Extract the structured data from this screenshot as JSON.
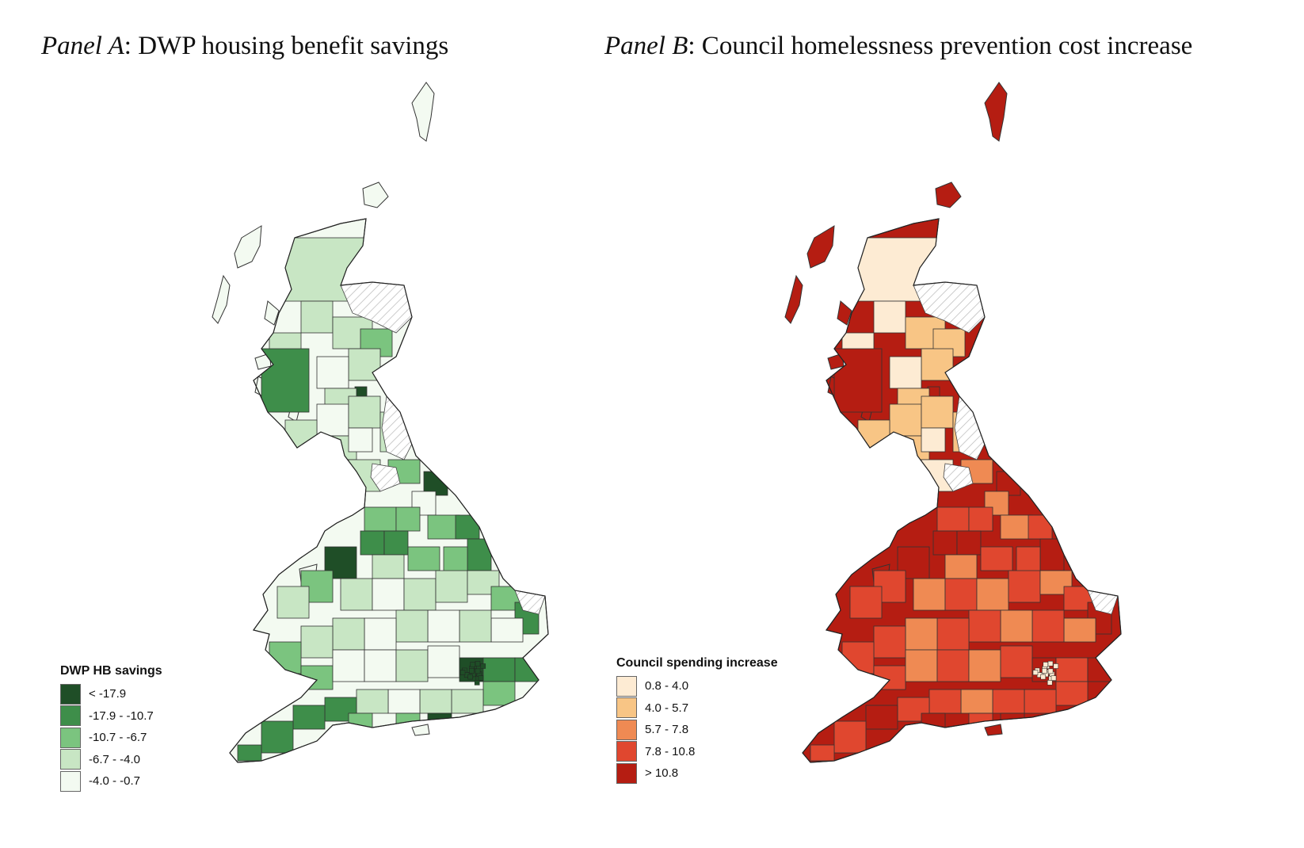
{
  "panel_a": {
    "title_italic": "Panel A",
    "title_rest": ": DWP housing benefit savings",
    "legend": {
      "title": "DWP HB savings",
      "items": [
        {
          "label": "< -17.9",
          "color": "#1f4e27"
        },
        {
          "label": "-17.9 - -10.7",
          "color": "#3e8e4a"
        },
        {
          "label": "-10.7 - -6.7",
          "color": "#7bc47f"
        },
        {
          "label": "-6.7 - -4.0",
          "color": "#c8e6c4"
        },
        {
          "label": "-4.0 - -0.7",
          "color": "#f3faf1"
        }
      ]
    }
  },
  "panel_b": {
    "title_italic": "Panel B",
    "title_rest": ": Council homelessness prevention cost increase",
    "legend": {
      "title": "Council spending increase",
      "items": [
        {
          "label": "0.8 - 4.0",
          "color": "#fdebd3"
        },
        {
          "label": "4.0 - 5.7",
          "color": "#f8c585"
        },
        {
          "label": "5.7 - 7.8",
          "color": "#ef8a53"
        },
        {
          "label": "7.8 - 10.8",
          "color": "#e0472f"
        },
        {
          "label": "> 10.8",
          "color": "#b51d12"
        }
      ]
    }
  },
  "no_data_color": "#e6e6e6"
}
